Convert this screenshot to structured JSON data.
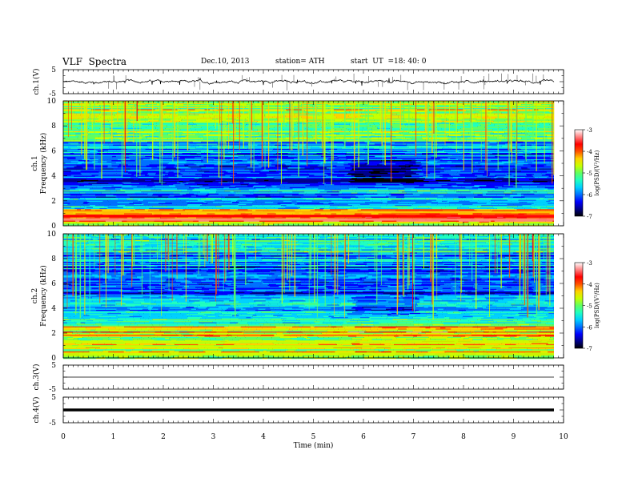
{
  "header": {
    "title": "VLF  Spectra",
    "date": "Dec.10, 2013",
    "station": "station= ATH",
    "start_label": "start  UT  =",
    "start_time": "18: 40: 0"
  },
  "colorbar": {
    "ticks": [
      "-3",
      "-4",
      "-5",
      "-6",
      "-7"
    ],
    "label": "log(PSD/(V²/Hz)",
    "colors": [
      "#000000",
      "#00008b",
      "#0000ff",
      "#0070ff",
      "#00d0ff",
      "#20ffc0",
      "#60ff60",
      "#c8ff00",
      "#ffd000",
      "#ff5000",
      "#ff0000",
      "#ff8080",
      "#ffffff"
    ]
  },
  "chart_data": [
    {
      "type": "line",
      "panel": "ch1-waveform",
      "ylabel": "ch.1(V)",
      "yticks": [
        "5",
        "-5"
      ],
      "ylim": [
        -5,
        5
      ],
      "x_range_min": [
        0,
        9.8
      ],
      "description_values": {
        "mean": 0,
        "typical_amplitude": 0.5,
        "spike_amplitude": 2
      }
    },
    {
      "type": "heatmap",
      "panel": "ch1-spectrogram",
      "ylabel": "ch.1\nFrequency  (kHz)",
      "ylabel_top": "ch.1",
      "ylabel_main": "Frequency  (kHz)",
      "yticks": [
        "0",
        "2",
        "4",
        "6",
        "8",
        "10"
      ],
      "ylim": [
        0,
        10
      ],
      "xlim": [
        0,
        9.8
      ],
      "z_range": [
        -7,
        -3
      ],
      "quiet_interval_min": [
        5.75,
        7.05
      ],
      "quiet_band_khz": [
        3.5,
        5.3
      ]
    },
    {
      "type": "heatmap",
      "panel": "ch2-spectrogram",
      "ylabel_top": "ch.2",
      "ylabel_main": "Frequency  (kHz)",
      "yticks": [
        "0",
        "2",
        "4",
        "6",
        "8",
        "10"
      ],
      "ylim": [
        0,
        10
      ],
      "xlim": [
        0,
        9.8
      ],
      "z_range": [
        -7,
        -3
      ],
      "quiet_interval_min": [
        5.75,
        7.05
      ],
      "quiet_band_khz": [
        3.5,
        5.0
      ]
    },
    {
      "type": "line",
      "panel": "ch3-waveform",
      "ylabel": "ch.3(V)",
      "yticks": [
        "5",
        "-5"
      ],
      "ylim": [
        -5,
        5
      ],
      "value": 0
    },
    {
      "type": "line",
      "panel": "ch4-waveform",
      "ylabel": "ch.4(V)",
      "yticks": [
        "5",
        "-5"
      ],
      "ylim": [
        -5,
        5
      ],
      "value": 0
    }
  ],
  "xaxis": {
    "label": "Time  (min)",
    "ticks": [
      "0",
      "1",
      "2",
      "3",
      "4",
      "5",
      "6",
      "7",
      "8",
      "9",
      "10"
    ],
    "xlim": [
      0,
      10
    ]
  }
}
